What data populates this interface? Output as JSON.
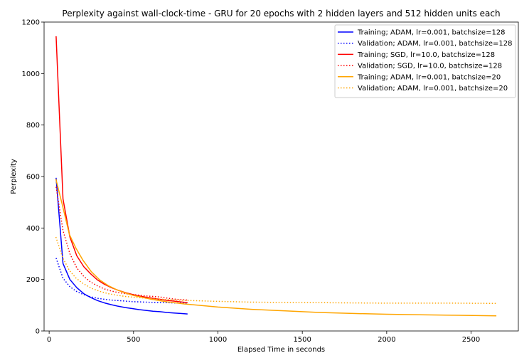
{
  "chart_data": {
    "type": "line",
    "title": "Perplexity against wall-clock-time - GRU for 20 epochs with 2 hidden layers and 512 hidden units each",
    "xlabel": "Elapsed Time in seconds",
    "ylabel": "Perplexity",
    "xlim": [
      -30,
      2780
    ],
    "ylim": [
      0,
      1200
    ],
    "xticks": [
      0,
      500,
      1000,
      1500,
      2000,
      2500
    ],
    "yticks": [
      0,
      200,
      400,
      600,
      800,
      1000,
      1200
    ],
    "grid": false,
    "legend_position": "top-right",
    "series": [
      {
        "name": "Training; ADAM, lr=0.001, batchsize=128",
        "color": "#0000ff",
        "dash": "solid",
        "x": [
          41,
          82,
          123,
          164,
          205,
          246,
          287,
          328,
          369,
          410,
          451,
          492,
          533,
          574,
          615,
          656,
          697,
          738,
          779,
          820
        ],
        "y": [
          595,
          262,
          200,
          168,
          145,
          130,
          118,
          109,
          102,
          96,
          91,
          87,
          83,
          80,
          77,
          75,
          72,
          70,
          68,
          66
        ]
      },
      {
        "name": "Validation; ADAM, lr=0.001, batchsize=128",
        "color": "#0000ff",
        "dash": "dotted",
        "x": [
          41,
          82,
          123,
          164,
          205,
          246,
          287,
          328,
          369,
          410,
          451,
          492,
          533,
          574,
          615,
          656,
          697,
          738,
          779,
          820
        ],
        "y": [
          283,
          205,
          172,
          153,
          141,
          133,
          127,
          123,
          120,
          118,
          116,
          114,
          113,
          112,
          111,
          110,
          110,
          109,
          109,
          108
        ]
      },
      {
        "name": "Training; SGD, lr=10.0, batchsize=128",
        "color": "#ff0000",
        "dash": "solid",
        "x": [
          41,
          82,
          123,
          164,
          205,
          246,
          287,
          328,
          369,
          410,
          451,
          492,
          533,
          574,
          615,
          656,
          697,
          738,
          779,
          820
        ],
        "y": [
          1145,
          513,
          365,
          292,
          250,
          222,
          198,
          181,
          168,
          158,
          149,
          142,
          136,
          131,
          127,
          123,
          119,
          116,
          113,
          110
        ]
      },
      {
        "name": "Validation; SGD, lr=10.0, batchsize=128",
        "color": "#ff0000",
        "dash": "dotted",
        "x": [
          41,
          82,
          123,
          164,
          205,
          246,
          287,
          328,
          369,
          410,
          451,
          492,
          533,
          574,
          615,
          656,
          697,
          738,
          779,
          820
        ],
        "y": [
          560,
          390,
          300,
          245,
          212,
          190,
          175,
          163,
          155,
          149,
          145,
          142,
          139,
          136,
          134,
          132,
          128,
          124,
          122,
          120
        ]
      },
      {
        "name": "Training; ADAM, lr=0.001, batchsize=20",
        "color": "#ffa500",
        "dash": "solid",
        "x": [
          40,
          80,
          120,
          160,
          200,
          250,
          300,
          350,
          400,
          450,
          500,
          600,
          700,
          800,
          1000,
          1200,
          1400,
          1600,
          1800,
          2000,
          2200,
          2400,
          2650
        ],
        "y": [
          590,
          485,
          375,
          320,
          275,
          230,
          198,
          176,
          160,
          148,
          138,
          124,
          113,
          105,
          93,
          84,
          78,
          72,
          68,
          65,
          63,
          61,
          59
        ]
      },
      {
        "name": "Validation; ADAM, lr=0.001, batchsize=20",
        "color": "#ffa500",
        "dash": "dotted",
        "x": [
          40,
          80,
          120,
          160,
          200,
          250,
          300,
          350,
          400,
          450,
          500,
          600,
          700,
          800,
          1000,
          1200,
          1400,
          1600,
          1800,
          2000,
          2200,
          2400,
          2650
        ],
        "y": [
          365,
          285,
          235,
          205,
          185,
          166,
          154,
          145,
          139,
          134,
          131,
          126,
          122,
          119,
          115,
          112,
          111,
          110,
          109,
          108,
          108,
          108,
          107
        ]
      }
    ]
  }
}
